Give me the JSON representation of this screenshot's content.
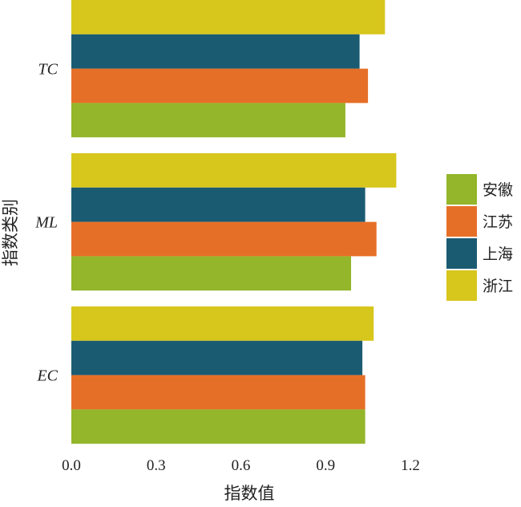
{
  "chart_data": {
    "type": "bar",
    "orientation": "horizontal",
    "categories": [
      "EC",
      "ML",
      "TC"
    ],
    "series": [
      {
        "name": "安徽",
        "color": "#93b62a",
        "values": [
          1.04,
          0.99,
          0.97
        ]
      },
      {
        "name": "江苏",
        "color": "#e66f27",
        "values": [
          1.04,
          1.08,
          1.05
        ]
      },
      {
        "name": "上海",
        "color": "#1b5b72",
        "values": [
          1.03,
          1.04,
          1.02
        ]
      },
      {
        "name": "浙江",
        "color": "#d7c61c",
        "values": [
          1.07,
          1.15,
          1.11
        ]
      }
    ],
    "xlabel": "指数值",
    "ylabel": "指数类别",
    "xlim": [
      0,
      1.2
    ],
    "xticks": [
      "0.0",
      "0.3",
      "0.6",
      "0.9",
      "1.2"
    ],
    "legend_position": "right",
    "grid": false
  }
}
